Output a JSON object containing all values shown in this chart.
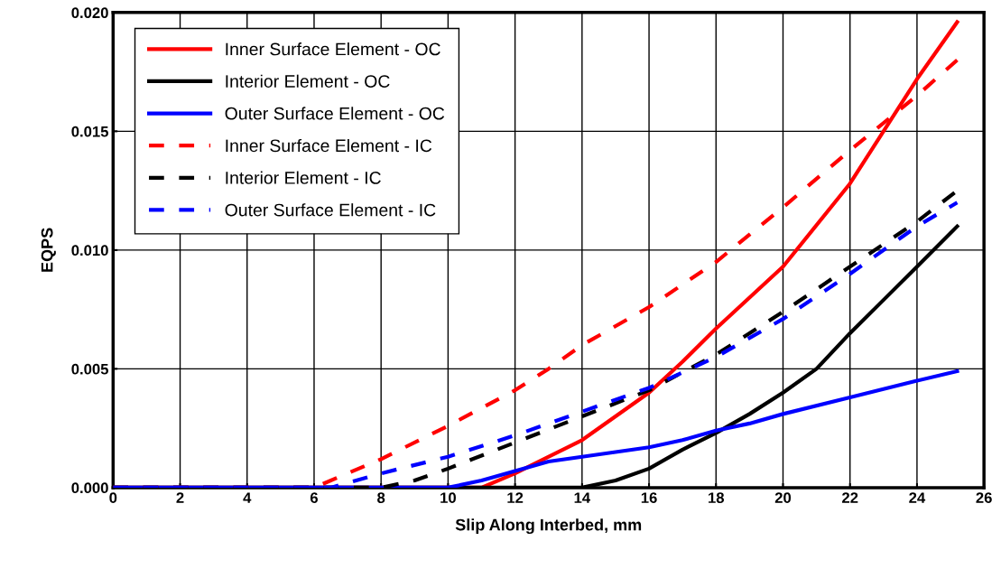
{
  "chart_data": {
    "type": "line",
    "xlabel": "Slip Along Interbed, mm",
    "ylabel": "EQPS",
    "xlim": [
      0,
      26
    ],
    "xticks": [
      0,
      2,
      4,
      6,
      8,
      10,
      12,
      14,
      16,
      18,
      20,
      22,
      24,
      26
    ],
    "ylim": [
      0,
      0.02
    ],
    "yticks": [
      {
        "value": 0,
        "label": "0.000"
      },
      {
        "value": 0.005,
        "label": "0.005"
      },
      {
        "value": 0.01,
        "label": "0.010"
      },
      {
        "value": 0.015,
        "label": "0.015"
      },
      {
        "value": 0.02,
        "label": "0.020"
      }
    ],
    "grid": true,
    "legend": "top left",
    "marker": "none",
    "series": [
      {
        "name": "Inner Surface Element - OC",
        "color": "#ff0000",
        "line_style": "solid",
        "x": [
          0,
          11,
          12,
          14,
          16,
          17,
          18,
          20,
          22,
          23,
          24,
          25.2
        ],
        "values": [
          0,
          0,
          0.0006,
          0.002,
          0.004,
          0.0053,
          0.0067,
          0.0093,
          0.0128,
          0.015,
          0.0172,
          0.0196
        ]
      },
      {
        "name": "Interior Element - OC",
        "color": "#000000",
        "line_style": "solid",
        "x": [
          0,
          14,
          15,
          16,
          17,
          18,
          19,
          20,
          21,
          22,
          23,
          24,
          25.2
        ],
        "values": [
          0,
          0,
          0.0003,
          0.0008,
          0.0016,
          0.0023,
          0.0031,
          0.004,
          0.005,
          0.0065,
          0.0079,
          0.0093,
          0.011
        ]
      },
      {
        "name": "Outer Surface Element - OC",
        "color": "#0000ff",
        "line_style": "solid",
        "x": [
          0,
          10,
          11,
          12,
          13,
          14,
          15,
          16,
          17,
          18,
          19,
          20,
          22,
          24,
          25.2
        ],
        "values": [
          0,
          0,
          0.0003,
          0.0007,
          0.0011,
          0.0013,
          0.0015,
          0.0017,
          0.002,
          0.0024,
          0.0027,
          0.0031,
          0.0038,
          0.0045,
          0.0049
        ]
      },
      {
        "name": "Inner Surface Element - IC",
        "color": "#ff0000",
        "line_style": "dashed",
        "x": [
          0,
          6,
          8,
          10,
          12,
          13,
          14,
          16,
          18,
          20,
          22,
          24,
          25.2
        ],
        "values": [
          0,
          0,
          0.0012,
          0.0026,
          0.0041,
          0.005,
          0.006,
          0.0076,
          0.0095,
          0.0118,
          0.0142,
          0.0165,
          0.018
        ]
      },
      {
        "name": "Interior Element - IC",
        "color": "#000000",
        "line_style": "dashed",
        "x": [
          0,
          8,
          9,
          10,
          12,
          14,
          16,
          18,
          20,
          22,
          24,
          25.2
        ],
        "values": [
          0,
          0,
          0.0003,
          0.0008,
          0.0019,
          0.003,
          0.0041,
          0.0056,
          0.0074,
          0.0093,
          0.0112,
          0.0125
        ]
      },
      {
        "name": "Outer Surface Element - IC",
        "color": "#0000ff",
        "line_style": "dashed",
        "x": [
          0,
          6.5,
          8,
          10,
          12,
          14,
          16,
          18,
          20,
          22,
          24,
          25.2
        ],
        "values": [
          0,
          0,
          0.0006,
          0.0013,
          0.0022,
          0.0032,
          0.0042,
          0.0055,
          0.0071,
          0.009,
          0.011,
          0.012
        ]
      }
    ]
  }
}
